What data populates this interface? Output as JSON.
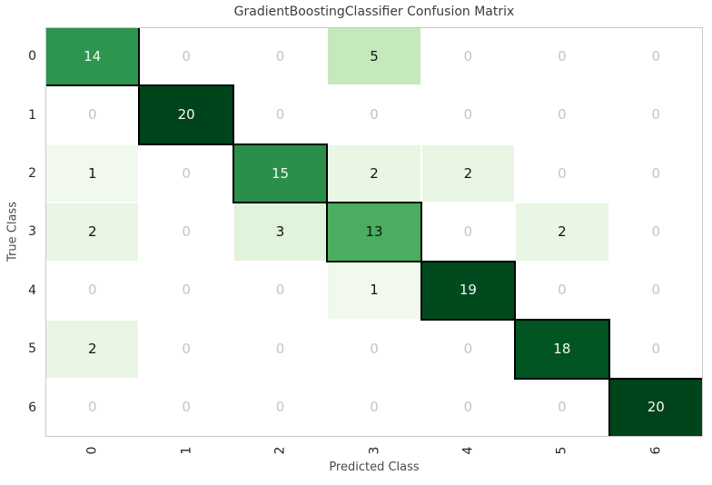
{
  "figure": {
    "title": "GradientBoostingClassifier Confusion Matrix"
  },
  "chart_data": {
    "type": "heatmap",
    "title": "GradientBoostingClassifier Confusion Matrix",
    "xlabel": "Predicted Class",
    "ylabel": "True Class",
    "x_ticklabels": [
      "0",
      "1",
      "2",
      "3",
      "4",
      "5",
      "6"
    ],
    "y_ticklabels": [
      "0",
      "1",
      "2",
      "3",
      "4",
      "5",
      "6"
    ],
    "x_tick_rotation_deg": 90,
    "colormap": "Greens",
    "grid_line_color": "#ffffff",
    "spine_color": "#c8c8c8",
    "diagonal_border_color": "#000000",
    "zero_cell_color": "#ffffff",
    "zero_text_color": "#c4c4c4",
    "matrix": [
      [
        14,
        0,
        0,
        5,
        0,
        0,
        0
      ],
      [
        0,
        20,
        0,
        0,
        0,
        0,
        0
      ],
      [
        1,
        0,
        15,
        2,
        2,
        0,
        0
      ],
      [
        2,
        0,
        3,
        13,
        0,
        2,
        0
      ],
      [
        0,
        0,
        0,
        1,
        19,
        0,
        0
      ],
      [
        2,
        0,
        0,
        0,
        0,
        18,
        0
      ],
      [
        0,
        0,
        0,
        0,
        0,
        0,
        20
      ]
    ],
    "cell_colors": [
      [
        "#2d954d",
        "#ffffff",
        "#ffffff",
        "#c5e8bd",
        "#ffffff",
        "#ffffff",
        "#ffffff"
      ],
      [
        "#ffffff",
        "#00441b",
        "#ffffff",
        "#ffffff",
        "#ffffff",
        "#ffffff",
        "#ffffff"
      ],
      [
        "#f0f9ec",
        "#ffffff",
        "#2a8f48",
        "#e8f6e3",
        "#e8f6e3",
        "#ffffff",
        "#ffffff"
      ],
      [
        "#e8f6e3",
        "#ffffff",
        "#e0f3db",
        "#4aad60",
        "#ffffff",
        "#e8f6e3",
        "#ffffff"
      ],
      [
        "#ffffff",
        "#ffffff",
        "#ffffff",
        "#f0f9ec",
        "#004a1e",
        "#ffffff",
        "#ffffff"
      ],
      [
        "#e8f6e3",
        "#ffffff",
        "#ffffff",
        "#ffffff",
        "#ffffff",
        "#005522",
        "#ffffff"
      ],
      [
        "#ffffff",
        "#ffffff",
        "#ffffff",
        "#ffffff",
        "#ffffff",
        "#ffffff",
        "#00441b"
      ]
    ],
    "label_colors": [
      [
        "#f7f7f7",
        "#c4c4c4",
        "#c4c4c4",
        "#141414",
        "#c4c4c4",
        "#c4c4c4",
        "#c4c4c4"
      ],
      [
        "#c4c4c4",
        "#f7f7f7",
        "#c4c4c4",
        "#c4c4c4",
        "#c4c4c4",
        "#c4c4c4",
        "#c4c4c4"
      ],
      [
        "#141414",
        "#c4c4c4",
        "#f7f7f7",
        "#141414",
        "#141414",
        "#c4c4c4",
        "#c4c4c4"
      ],
      [
        "#141414",
        "#c4c4c4",
        "#141414",
        "#141414",
        "#c4c4c4",
        "#141414",
        "#c4c4c4"
      ],
      [
        "#c4c4c4",
        "#c4c4c4",
        "#c4c4c4",
        "#141414",
        "#f7f7f7",
        "#c4c4c4",
        "#c4c4c4"
      ],
      [
        "#141414",
        "#c4c4c4",
        "#c4c4c4",
        "#c4c4c4",
        "#c4c4c4",
        "#f7f7f7",
        "#c4c4c4"
      ],
      [
        "#c4c4c4",
        "#c4c4c4",
        "#c4c4c4",
        "#c4c4c4",
        "#c4c4c4",
        "#c4c4c4",
        "#f7f7f7"
      ]
    ]
  }
}
